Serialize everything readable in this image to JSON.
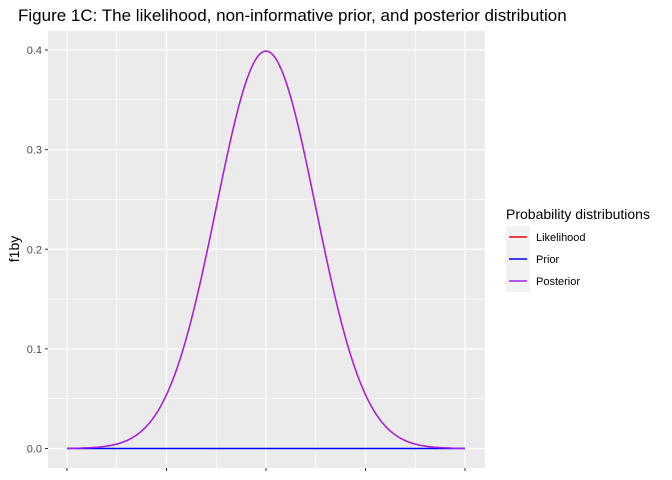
{
  "chart_data": {
    "type": "line",
    "title": "Figure 1C: The likelihood, non-informative prior, and posterior distribution",
    "xlabel": "",
    "ylabel": "f1by",
    "xlim": [
      -4,
      4
    ],
    "ylim": [
      0,
      0.4
    ],
    "y_ticks": [
      "0.0",
      "0.1",
      "0.2",
      "0.3",
      "0.4"
    ],
    "y_tick_values": [
      0,
      0.1,
      0.2,
      0.3,
      0.4
    ],
    "x_tick_values": [
      -4,
      -2,
      0,
      2,
      4
    ],
    "x_tick_labels_shown": false,
    "grid": true,
    "legend_position": "right",
    "legend_title": "Probability distributions",
    "series": [
      {
        "name": "Likelihood",
        "color": "#ff0000",
        "shape": "normal",
        "mean": 0,
        "sd": 1,
        "peak": 0.399
      },
      {
        "name": "Prior",
        "color": "#0000ff",
        "shape": "flat",
        "value": 0
      },
      {
        "name": "Posterior",
        "color": "#a020f0",
        "shape": "normal",
        "mean": 0,
        "sd": 1,
        "peak": 0.399
      }
    ]
  }
}
